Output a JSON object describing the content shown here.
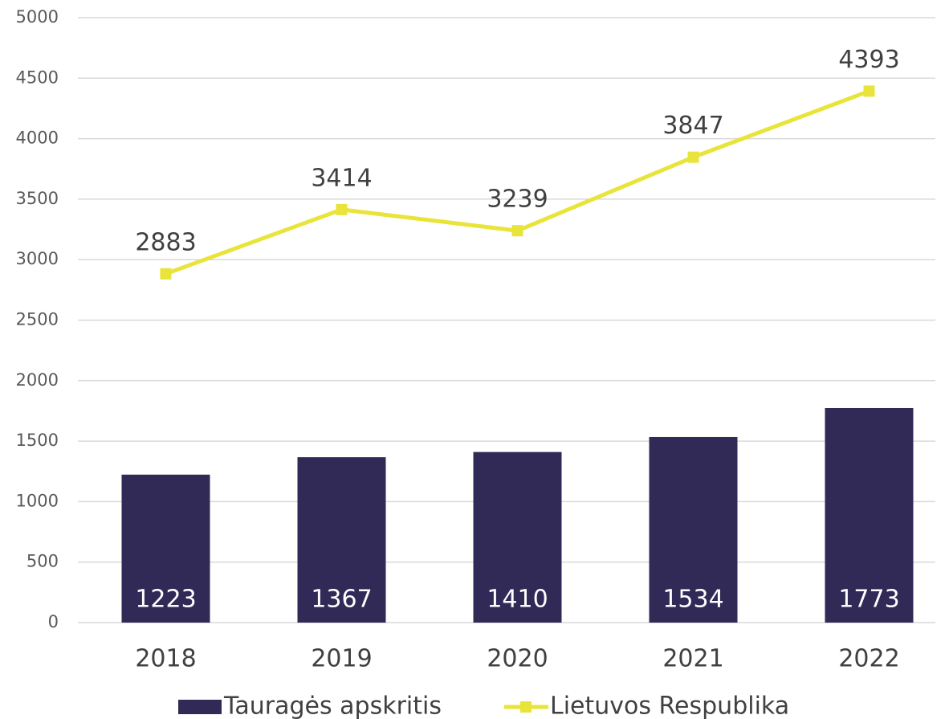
{
  "chart_data": {
    "type": "bar",
    "categories": [
      "2018",
      "2019",
      "2020",
      "2021",
      "2022"
    ],
    "series": [
      {
        "name": "Tauragės apskritis",
        "type": "bar",
        "color": "#312a57",
        "values": [
          1223,
          1367,
          1410,
          1534,
          1773
        ]
      },
      {
        "name": "Lietuvos Respublika",
        "type": "line",
        "color": "#e8e43a",
        "values": [
          2883,
          3414,
          3239,
          3847,
          4393
        ]
      }
    ],
    "ylim": [
      0,
      5000
    ],
    "yticks": [
      0,
      500,
      1000,
      1500,
      2000,
      2500,
      3000,
      3500,
      4000,
      4500,
      5000
    ],
    "grid": true,
    "legend": "bottom"
  }
}
